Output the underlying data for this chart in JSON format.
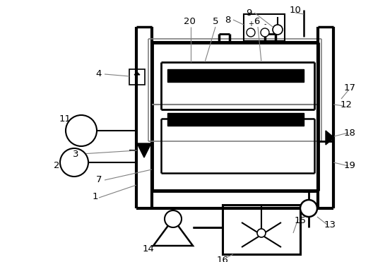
{
  "bg": "#ffffff",
  "lc": "#000000",
  "gc": "#aaaaaa",
  "figsize": [
    5.28,
    3.71
  ],
  "dpi": 100
}
